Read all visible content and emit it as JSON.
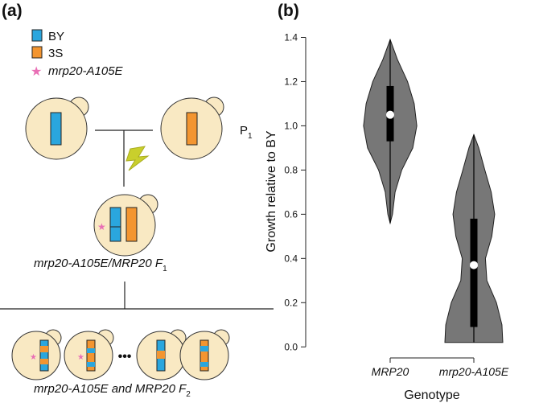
{
  "panel_a": {
    "label": "(a)",
    "legend": [
      {
        "text": "BY",
        "color": "#2aa6de"
      },
      {
        "text": "3S",
        "color": "#f39530"
      },
      {
        "text": "mrp20-A105E",
        "color": "#e96fb5"
      }
    ],
    "p1": {
      "text": "P",
      "subscript": "1"
    },
    "f1": {
      "text": "mrp20-A105E/MRP20 F",
      "subscript": "1"
    },
    "ellipsis": "•••",
    "f2": {
      "text": "mrp20-A105E and MRP20 F",
      "subscript": "2"
    }
  },
  "chart_data": {
    "type": "violin",
    "panel_label": "(b)",
    "x_label": "Genotype",
    "y_label": "Growth relative to BY",
    "categories": [
      "MRP20",
      "mrp20-A105E"
    ],
    "color": "#777777",
    "ylim": [
      -0.05,
      1.46
    ],
    "yticks": [
      {
        "value": 0,
        "label": "0.0"
      },
      0.2,
      0.4,
      0.6,
      0.8,
      {
        "value": 1,
        "label": "1.0"
      },
      1.2,
      1.4
    ],
    "violins": [
      {
        "density_y": [
          0.56,
          0.6,
          0.7,
          0.8,
          0.9,
          1.0,
          1.1,
          1.2,
          1.3,
          1.39
        ],
        "density": [
          0,
          0.08,
          0.17,
          0.4,
          0.78,
          0.92,
          0.83,
          0.6,
          0.25,
          0
        ],
        "min": 0.56,
        "q1": 0.93,
        "median": 1.05,
        "q3": 1.18,
        "max": 1.39
      },
      {
        "density_y": [
          0.02,
          0.1,
          0.2,
          0.3,
          0.4,
          0.5,
          0.6,
          0.7,
          0.8,
          0.9,
          0.96
        ],
        "density": [
          1,
          0.97,
          0.78,
          0.45,
          0.4,
          0.62,
          0.72,
          0.6,
          0.38,
          0.17,
          0
        ],
        "min": 0.02,
        "q1": 0.09,
        "median": 0.37,
        "q3": 0.58,
        "max": 0.96
      }
    ]
  }
}
